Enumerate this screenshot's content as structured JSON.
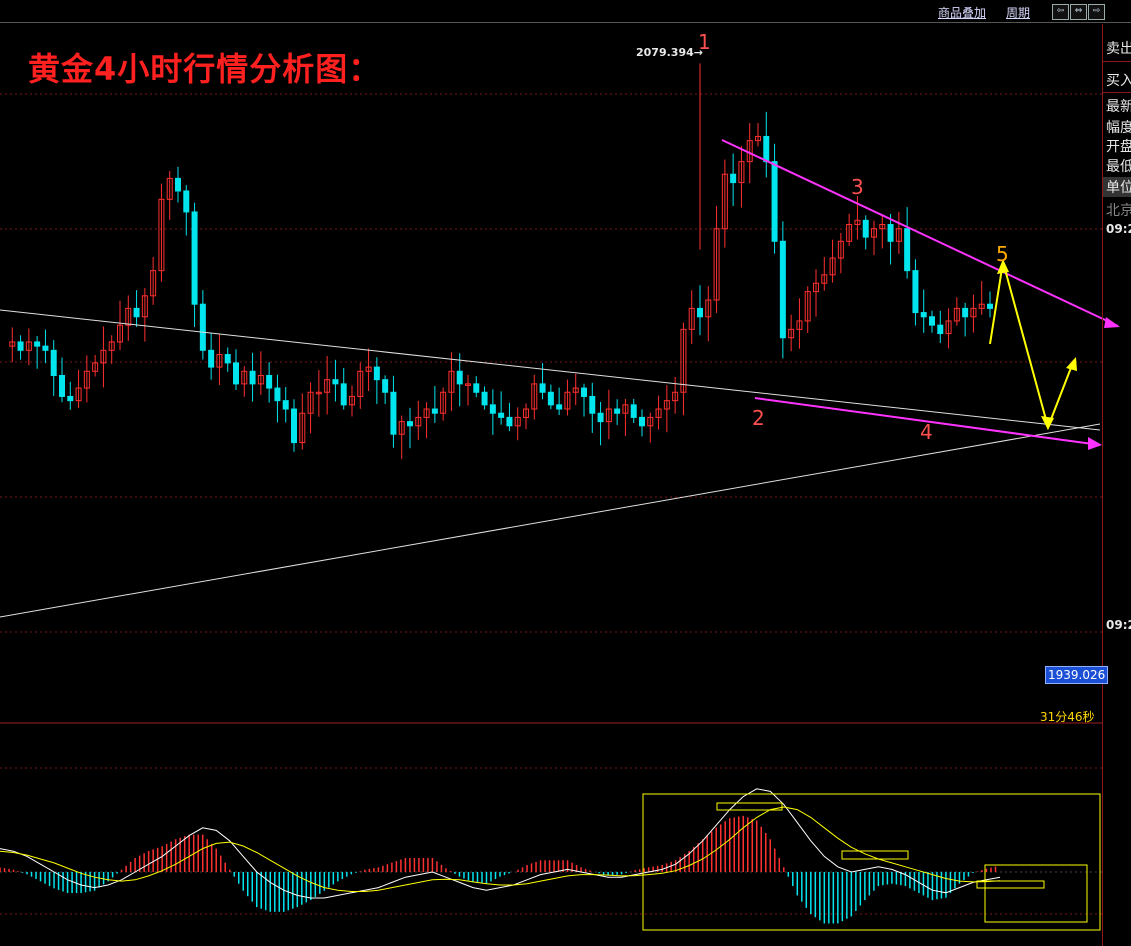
{
  "toolbar": {
    "overlay_label": "商品叠加",
    "period_label": "周期"
  },
  "title": "黄金4小时行情分析图：",
  "right_panel": {
    "items": [
      "卖出",
      "买入",
      "最新",
      "幅度",
      "开盘",
      "最低",
      "单位",
      "北京"
    ],
    "times": [
      "09:2",
      "09:2"
    ]
  },
  "price_marker": "1939.026",
  "countdown": "31分46秒",
  "high_label": "2079.394→",
  "wave_labels": [
    "1",
    "2",
    "3",
    "4",
    "5"
  ],
  "colors": {
    "up_candle": "#ff3030",
    "down_candle": "#00e5ee",
    "trendline_white": "#e0e0e0",
    "wedge_line": "#ff33ff",
    "forecast_arrow": "#ffff00",
    "grid": "#7a1a1a",
    "macd_dif": "#ffffff",
    "macd_dea": "#ffff00",
    "title": "#ff2020",
    "price_tag": "#1a4fd6"
  },
  "chart_data": {
    "type": "candlestick",
    "title": "黄金4小时行情分析图：",
    "period": "4h",
    "high_marker": 2079.394,
    "current_price_marker": 1939.026,
    "close_path": [
      2012,
      2013,
      2011,
      2013,
      2012,
      2011,
      2005,
      2000,
      1999,
      2002,
      2006,
      2008,
      2011,
      2013,
      2017,
      2021,
      2019,
      2024,
      2030,
      2047,
      2052,
      2049,
      2044,
      2022,
      2011,
      2007,
      2010,
      2008,
      2003,
      2006,
      2003,
      2005,
      2002,
      1999,
      1997,
      1989,
      1996,
      2001,
      2001,
      2004,
      2003,
      1998,
      2000,
      2006,
      2007,
      2004,
      2001,
      1991,
      1994,
      1993,
      1995,
      1997,
      1996,
      2001,
      2006,
      2003,
      2003,
      2001,
      1998,
      1996,
      1995,
      1993,
      1995,
      1997,
      2003,
      2001,
      1998,
      1997,
      2001,
      2002,
      2000,
      1996,
      1994,
      1997,
      1996,
      1998,
      1995,
      1993,
      1995,
      1997,
      1999,
      2001,
      2016,
      2021,
      2019,
      2023,
      2040,
      2053,
      2051,
      2056,
      2061,
      2062,
      2056,
      2037,
      2014,
      2016,
      2018,
      2025,
      2027,
      2029,
      2033,
      2037,
      2041,
      2042,
      2038,
      2040,
      2041,
      2037,
      2040,
      2030,
      2020,
      2019,
      2017,
      2015,
      2018,
      2021,
      2019,
      2021,
      2022,
      2021
    ],
    "wave_points": [
      {
        "label": "1",
        "price": 2079.394
      },
      {
        "label": "2",
        "price": 2013
      },
      {
        "label": "3",
        "price": 2055
      },
      {
        "label": "4",
        "price": 2009
      },
      {
        "label": "5",
        "price": 2044
      }
    ],
    "macd": {
      "dif": [
        0.9,
        0.8,
        0.6,
        0.3,
        0.0,
        -0.3,
        -0.5,
        -0.6,
        -0.5,
        -0.3,
        0.0,
        0.3,
        0.6,
        1.0,
        1.4,
        1.7,
        1.6,
        1.2,
        0.6,
        0.0,
        -0.4,
        -0.7,
        -0.9,
        -1.0,
        -1.0,
        -0.9,
        -0.8,
        -0.7,
        -0.6,
        -0.4,
        -0.2,
        -0.1,
        0.0,
        -0.2,
        -0.4,
        -0.6,
        -0.7,
        -0.6,
        -0.5,
        -0.3,
        -0.1,
        0.0,
        0.1,
        0.0,
        -0.1,
        -0.2,
        -0.2,
        -0.1,
        0.0,
        0.1,
        0.3,
        0.7,
        1.2,
        1.8,
        2.4,
        2.9,
        3.2,
        3.1,
        2.6,
        1.9,
        1.2,
        0.6,
        0.2,
        0.0,
        0.1,
        0.2,
        0.1,
        -0.1,
        -0.4,
        -0.7,
        -0.8,
        -0.6,
        -0.4,
        -0.3,
        -0.2
      ],
      "dea": [
        0.8,
        0.75,
        0.65,
        0.5,
        0.35,
        0.15,
        -0.05,
        -0.2,
        -0.3,
        -0.35,
        -0.3,
        -0.15,
        0.05,
        0.3,
        0.6,
        0.9,
        1.1,
        1.15,
        1.0,
        0.75,
        0.45,
        0.15,
        -0.15,
        -0.4,
        -0.6,
        -0.7,
        -0.75,
        -0.75,
        -0.7,
        -0.6,
        -0.5,
        -0.4,
        -0.3,
        -0.28,
        -0.3,
        -0.38,
        -0.45,
        -0.5,
        -0.5,
        -0.45,
        -0.35,
        -0.25,
        -0.15,
        -0.1,
        -0.1,
        -0.12,
        -0.15,
        -0.14,
        -0.1,
        -0.05,
        0.05,
        0.25,
        0.5,
        0.85,
        1.25,
        1.7,
        2.1,
        2.4,
        2.5,
        2.4,
        2.1,
        1.7,
        1.3,
        0.95,
        0.7,
        0.5,
        0.35,
        0.2,
        0.05,
        -0.1,
        -0.25,
        -0.35,
        -0.38,
        -0.37,
        -0.34
      ]
    },
    "grid": true
  }
}
